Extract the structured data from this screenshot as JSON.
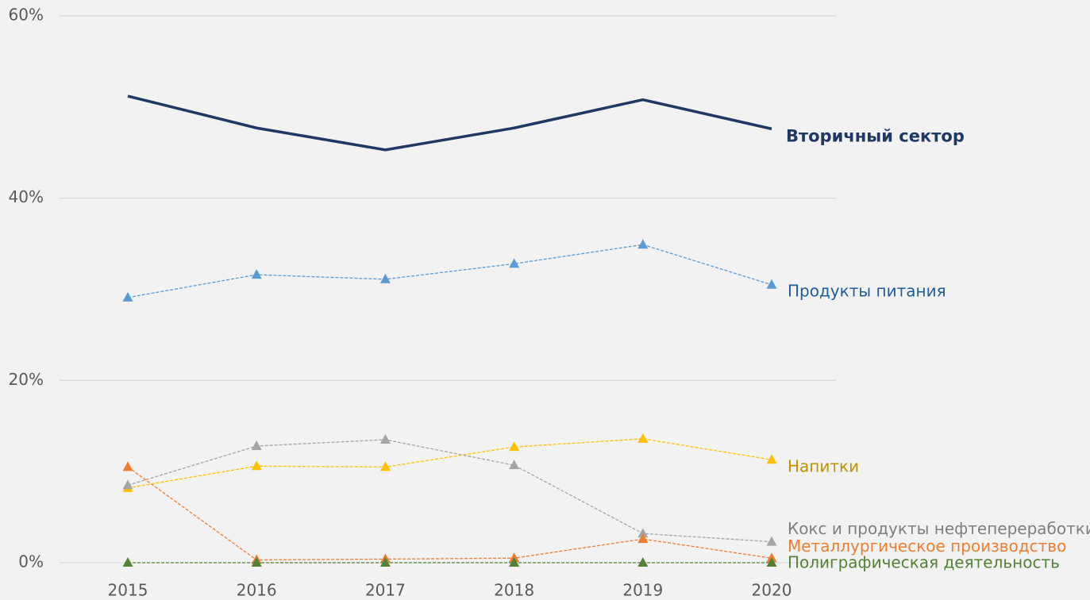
{
  "chart_data": {
    "type": "line",
    "categories": [
      "2015",
      "2016",
      "2017",
      "2018",
      "2019",
      "2020"
    ],
    "ylim": [
      0,
      60
    ],
    "yticks": [
      {
        "value": 0,
        "label": "0%"
      },
      {
        "value": 20,
        "label": "20%"
      },
      {
        "value": 40,
        "label": "40%"
      },
      {
        "value": 60,
        "label": "60%"
      }
    ],
    "grid": true,
    "series": [
      {
        "name": "Вторичный сектор",
        "color": "#1f3864",
        "label_color": "#1f3864",
        "line_style": "solid",
        "marker": "none",
        "values": [
          51.2,
          47.7,
          45.3,
          47.7,
          50.8,
          47.6
        ]
      },
      {
        "name": "Продукты питания",
        "color": "#5b9bd5",
        "label_color": "#1f5c99",
        "line_style": "dashed",
        "marker": "triangle",
        "values": [
          29.1,
          31.6,
          31.1,
          32.8,
          34.9,
          30.5
        ]
      },
      {
        "name": "Напитки",
        "color": "#ffc000",
        "label_color": "#bf9000",
        "line_style": "dashed",
        "marker": "triangle",
        "values": [
          8.2,
          10.6,
          10.5,
          12.7,
          13.6,
          11.3
        ]
      },
      {
        "name": "Кокс и продукты нефтепереработки",
        "color": "#a5a5a5",
        "label_color": "#7f7f7f",
        "line_style": "dashed",
        "marker": "triangle",
        "values": [
          8.5,
          12.8,
          13.5,
          10.7,
          3.2,
          2.3
        ]
      },
      {
        "name": "Металлургическое производство",
        "color": "#ed7d31",
        "label_color": "#ed7d31",
        "line_style": "dashed",
        "marker": "triangle",
        "values": [
          10.5,
          0.3,
          0.4,
          0.5,
          2.6,
          0.5
        ]
      },
      {
        "name": "Полиграфическая деятельность",
        "color": "#548235",
        "label_color": "#548235",
        "line_style": "dashed",
        "marker": "triangle",
        "values": [
          0,
          0,
          0,
          0,
          0,
          0
        ]
      }
    ]
  }
}
